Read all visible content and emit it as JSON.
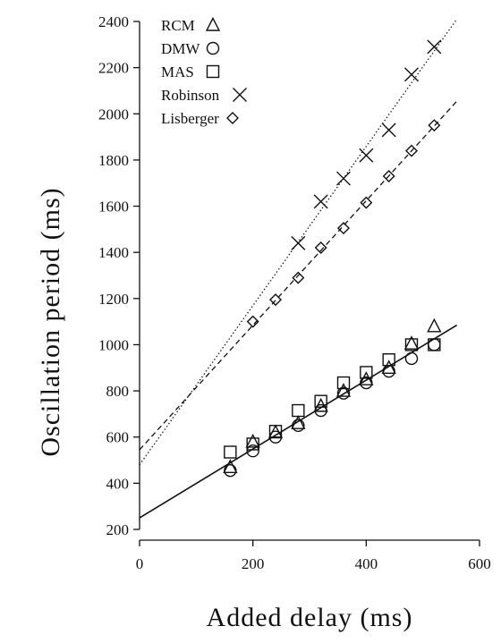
{
  "chart_data": {
    "type": "scatter",
    "xlabel": "Added delay (ms)",
    "ylabel": "Oscillation period (ms)",
    "xlim": [
      0,
      600
    ],
    "ylim": [
      200,
      2400
    ],
    "xticks": [
      0,
      200,
      400,
      600
    ],
    "yticks": [
      200,
      400,
      600,
      800,
      1000,
      1200,
      1400,
      1600,
      1800,
      2000,
      2200,
      2400
    ],
    "legend_position": "top-left",
    "series": [
      {
        "name": "RCM",
        "marker": "triangle",
        "points": [
          [
            160,
            470
          ],
          [
            200,
            580
          ],
          [
            240,
            620
          ],
          [
            280,
            660
          ],
          [
            320,
            735
          ],
          [
            360,
            800
          ],
          [
            400,
            850
          ],
          [
            440,
            900
          ],
          [
            480,
            1005
          ],
          [
            520,
            1080
          ]
        ]
      },
      {
        "name": "DMW",
        "marker": "circle",
        "points": [
          [
            160,
            455
          ],
          [
            200,
            540
          ],
          [
            240,
            600
          ],
          [
            280,
            650
          ],
          [
            320,
            715
          ],
          [
            360,
            790
          ],
          [
            400,
            835
          ],
          [
            440,
            885
          ],
          [
            480,
            940
          ],
          [
            520,
            1000
          ]
        ]
      },
      {
        "name": "MAS",
        "marker": "square",
        "points": [
          [
            160,
            535
          ],
          [
            200,
            570
          ],
          [
            240,
            625
          ],
          [
            280,
            715
          ],
          [
            320,
            755
          ],
          [
            360,
            835
          ],
          [
            400,
            880
          ],
          [
            440,
            935
          ],
          [
            480,
            1000
          ],
          [
            520,
            1000
          ]
        ]
      },
      {
        "name": "Robinson",
        "marker": "x",
        "points": [
          [
            280,
            1440
          ],
          [
            320,
            1620
          ],
          [
            360,
            1720
          ],
          [
            400,
            1820
          ],
          [
            440,
            1930
          ],
          [
            480,
            2170
          ],
          [
            520,
            2290
          ]
        ]
      },
      {
        "name": "Lisberger",
        "marker": "diamond",
        "points": [
          [
            200,
            1100
          ],
          [
            240,
            1195
          ],
          [
            280,
            1290
          ],
          [
            320,
            1420
          ],
          [
            360,
            1505
          ],
          [
            400,
            1615
          ],
          [
            440,
            1730
          ],
          [
            480,
            1840
          ],
          [
            520,
            1950
          ]
        ]
      }
    ],
    "fit_lines": [
      {
        "style": "solid",
        "from": [
          0,
          250
        ],
        "to": [
          560,
          1085
        ]
      },
      {
        "style": "dashed",
        "from": [
          0,
          545
        ],
        "to": [
          560,
          2055
        ]
      },
      {
        "style": "dotted",
        "from": [
          0,
          480
        ],
        "to": [
          560,
          2410
        ]
      }
    ]
  }
}
